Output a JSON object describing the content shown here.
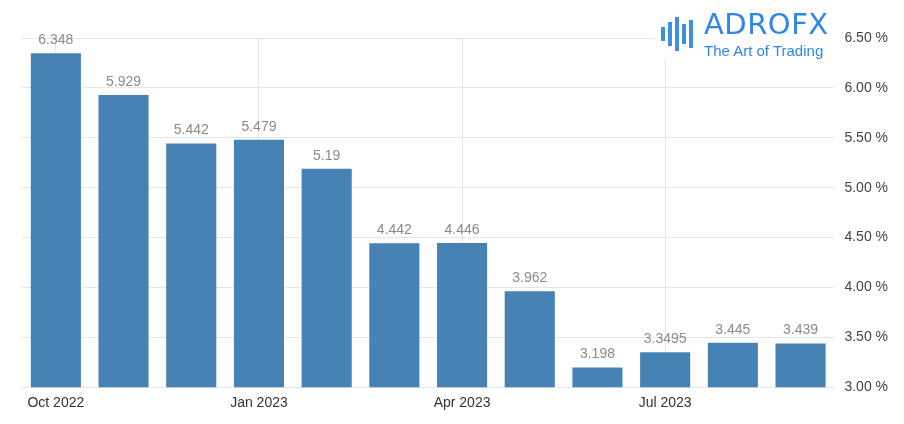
{
  "chart_data": {
    "type": "bar",
    "categories": [
      "Oct 2022",
      null,
      null,
      "Jan 2023",
      null,
      null,
      "Apr 2023",
      null,
      null,
      "Jul 2023",
      null,
      null
    ],
    "values": [
      6.348,
      5.929,
      5.442,
      5.479,
      5.19,
      4.442,
      4.446,
      3.962,
      3.198,
      3.3495,
      3.445,
      3.439
    ],
    "color": "#4682b4",
    "ylim": [
      3,
      6.5
    ],
    "yticks": [
      {
        "value": 3,
        "label": "3.00 %"
      },
      {
        "value": 3.5,
        "label": "3.50 %"
      },
      {
        "value": 4,
        "label": "4.00 %"
      },
      {
        "value": 4.5,
        "label": "4.50 %"
      },
      {
        "value": 5,
        "label": "5.00 %"
      },
      {
        "value": 5.5,
        "label": "5.50 %"
      },
      {
        "value": 6,
        "label": "6.00 %"
      },
      {
        "value": 6.5,
        "label": "6.50 %"
      }
    ],
    "grid": true,
    "data_labels": true,
    "annotations": [
      "ADROFX",
      "The Art of Trading"
    ]
  }
}
